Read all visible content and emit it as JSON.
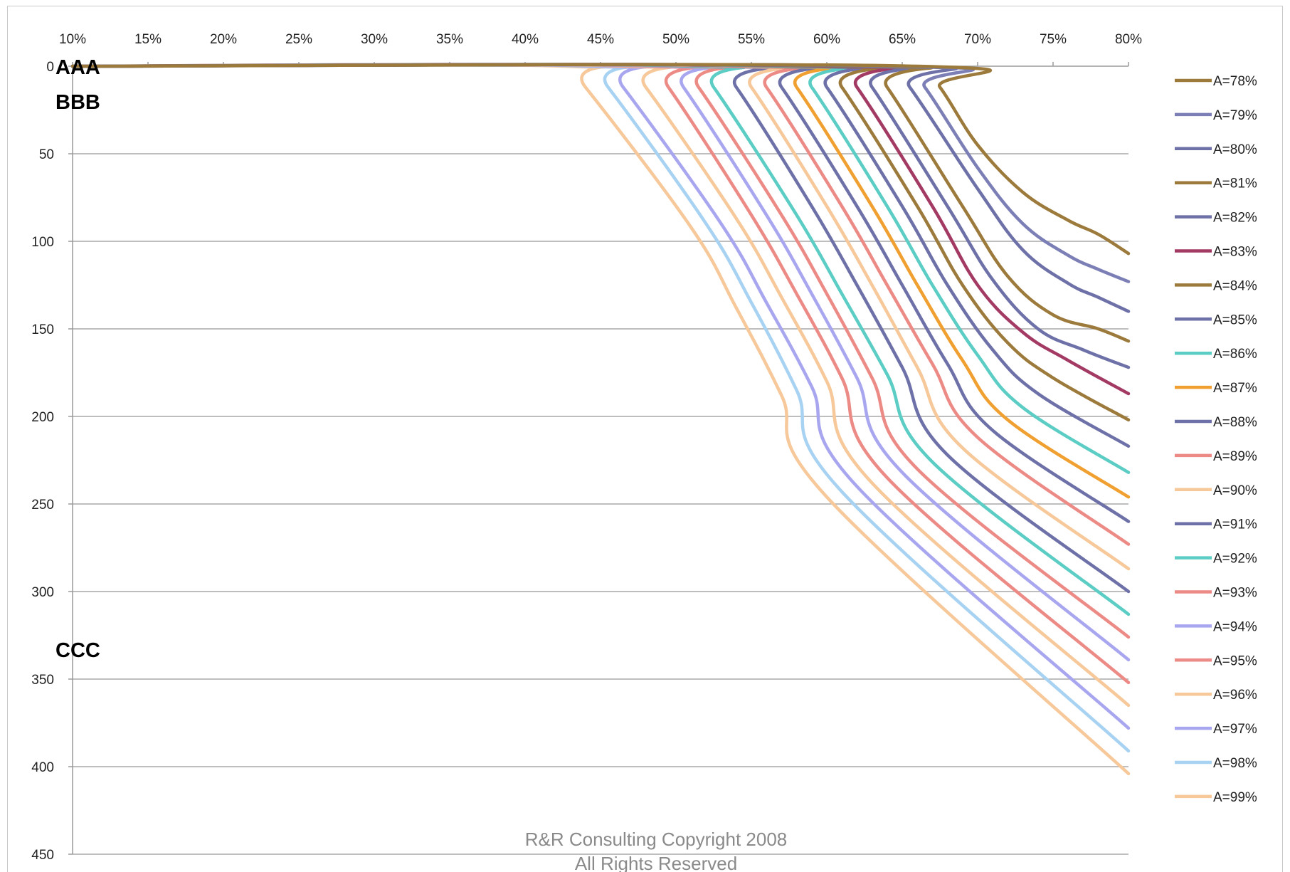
{
  "chart_data": {
    "type": "line",
    "x_axis": {
      "ticks": [
        "10%",
        "15%",
        "20%",
        "25%",
        "30%",
        "35%",
        "40%",
        "45%",
        "50%",
        "55%",
        "60%",
        "65%",
        "70%",
        "75%",
        "80%"
      ],
      "range": [
        10,
        80
      ],
      "position": "top"
    },
    "y_axis": {
      "ticks": [
        "0",
        "50",
        "100",
        "150",
        "200",
        "250",
        "300",
        "350",
        "400",
        "450"
      ],
      "range": [
        0,
        450
      ],
      "inverted": true
    },
    "grid": "horizontal",
    "legend_position": "right",
    "band_labels": [
      {
        "text": "AAA",
        "y": 0
      },
      {
        "text": "BBB",
        "y": 20
      },
      {
        "text": "CCC",
        "y": 333
      }
    ],
    "footer": {
      "line1": "R&R Consulting Copyright 2008",
      "line2": "All Rights Reserved"
    },
    "series": [
      {
        "name": "A=78%",
        "color": "#9c7a3c",
        "x": [
          10,
          66.0,
          67.5,
          70,
          73,
          76,
          78,
          80
        ],
        "y": [
          0,
          0,
          12,
          45,
          72,
          88,
          96,
          107
        ]
      },
      {
        "name": "A=79%",
        "color": "#7b7fb5",
        "x": [
          10,
          65.0,
          66.5,
          70,
          73,
          76,
          78,
          80
        ],
        "y": [
          0,
          0,
          12,
          58,
          90,
          108,
          116,
          123
        ]
      },
      {
        "name": "A=80%",
        "color": "#6d71a8",
        "x": [
          10,
          64.0,
          65.5,
          70,
          73,
          76,
          78,
          80
        ],
        "y": [
          0,
          0,
          12,
          70,
          105,
          124,
          132,
          140
        ]
      },
      {
        "name": "A=81%",
        "color": "#9c7a3c",
        "x": [
          10,
          62.5,
          64.0,
          69,
          72,
          75,
          78,
          80
        ],
        "y": [
          0,
          0,
          12,
          80,
          120,
          142,
          150,
          157
        ]
      },
      {
        "name": "A=82%",
        "color": "#6d71a8",
        "x": [
          10,
          61.5,
          63.0,
          68,
          71,
          74,
          77,
          80
        ],
        "y": [
          0,
          0,
          12,
          80,
          122,
          150,
          162,
          172
        ]
      },
      {
        "name": "A=83%",
        "color": "#a33a63",
        "x": [
          10,
          60.5,
          62.0,
          67,
          70,
          73,
          76,
          80
        ],
        "y": [
          0,
          0,
          12,
          80,
          125,
          152,
          168,
          187
        ]
      },
      {
        "name": "A=84%",
        "color": "#9c7a3c",
        "x": [
          10,
          59.5,
          61.0,
          66,
          69,
          72,
          75,
          80
        ],
        "y": [
          0,
          0,
          12,
          80,
          125,
          158,
          178,
          202
        ]
      },
      {
        "name": "A=85%",
        "color": "#6d71a8",
        "x": [
          10,
          58.5,
          60.0,
          65,
          68,
          71,
          74,
          80
        ],
        "y": [
          0,
          0,
          12,
          80,
          125,
          162,
          187,
          217
        ]
      },
      {
        "name": "A=86%",
        "color": "#5ccdc4",
        "x": [
          10,
          57.5,
          59.0,
          64,
          67,
          70,
          73,
          80
        ],
        "y": [
          0,
          0,
          12,
          80,
          125,
          165,
          195,
          232
        ]
      },
      {
        "name": "A=87%",
        "color": "#f0a030",
        "x": [
          10,
          56.5,
          58.0,
          63,
          66,
          69,
          72,
          80
        ],
        "y": [
          0,
          0,
          12,
          80,
          125,
          168,
          202,
          246
        ]
      },
      {
        "name": "A=88%",
        "color": "#6d71a8",
        "x": [
          10,
          55.5,
          57.0,
          62,
          65,
          68,
          71,
          80
        ],
        "y": [
          0,
          0,
          12,
          80,
          125,
          170,
          208,
          260
        ]
      },
      {
        "name": "A=89%",
        "color": "#ec8a86",
        "x": [
          10,
          54.5,
          56.0,
          61,
          64,
          67,
          70,
          80
        ],
        "y": [
          0,
          0,
          12,
          80,
          125,
          170,
          212,
          273
        ]
      },
      {
        "name": "A=90%",
        "color": "#f6c89a",
        "x": [
          10,
          53.5,
          55.0,
          60,
          63,
          66,
          69,
          80
        ],
        "y": [
          0,
          0,
          12,
          80,
          125,
          172,
          218,
          287
        ]
      },
      {
        "name": "A=91%",
        "color": "#6d71a8",
        "x": [
          10,
          52.5,
          54.0,
          59,
          62,
          65,
          68,
          80
        ],
        "y": [
          0,
          0,
          12,
          80,
          125,
          172,
          222,
          300
        ]
      },
      {
        "name": "A=92%",
        "color": "#5ccdc4",
        "x": [
          10,
          51.0,
          52.5,
          58,
          61,
          64,
          67,
          80
        ],
        "y": [
          0,
          0,
          12,
          85,
          130,
          176,
          226,
          313
        ]
      },
      {
        "name": "A=93%",
        "color": "#ec8a86",
        "x": [
          10,
          50.0,
          51.5,
          57,
          60,
          63,
          66,
          80
        ],
        "y": [
          0,
          0,
          12,
          85,
          130,
          178,
          230,
          326
        ]
      },
      {
        "name": "A=94%",
        "color": "#a9a6f0",
        "x": [
          10,
          49.0,
          50.5,
          56,
          59,
          62,
          65,
          80
        ],
        "y": [
          0,
          0,
          12,
          85,
          130,
          178,
          232,
          339
        ]
      },
      {
        "name": "A=95%",
        "color": "#ec8a86",
        "x": [
          10,
          48.0,
          49.5,
          55,
          58,
          61,
          64,
          80
        ],
        "y": [
          0,
          0,
          12,
          85,
          130,
          178,
          235,
          352
        ]
      },
      {
        "name": "A=96%",
        "color": "#f6c89a",
        "x": [
          10,
          46.5,
          48.0,
          54,
          57,
          60,
          63,
          80
        ],
        "y": [
          0,
          0,
          12,
          87,
          132,
          180,
          238,
          365
        ]
      },
      {
        "name": "A=97%",
        "color": "#a9a6f0",
        "x": [
          10,
          45.0,
          46.5,
          53,
          56,
          59,
          62,
          80
        ],
        "y": [
          0,
          0,
          12,
          90,
          135,
          183,
          240,
          378
        ]
      },
      {
        "name": "A=98%",
        "color": "#a8d2f2",
        "x": [
          10,
          44.0,
          45.5,
          52,
          55,
          58,
          61,
          80
        ],
        "y": [
          0,
          0,
          12,
          90,
          135,
          185,
          243,
          391
        ]
      },
      {
        "name": "A=99%",
        "color": "#f6c89a",
        "x": [
          10,
          42.5,
          44.0,
          51,
          54,
          57,
          60,
          80
        ],
        "y": [
          0,
          0,
          12,
          92,
          138,
          188,
          246,
          404
        ]
      }
    ]
  }
}
